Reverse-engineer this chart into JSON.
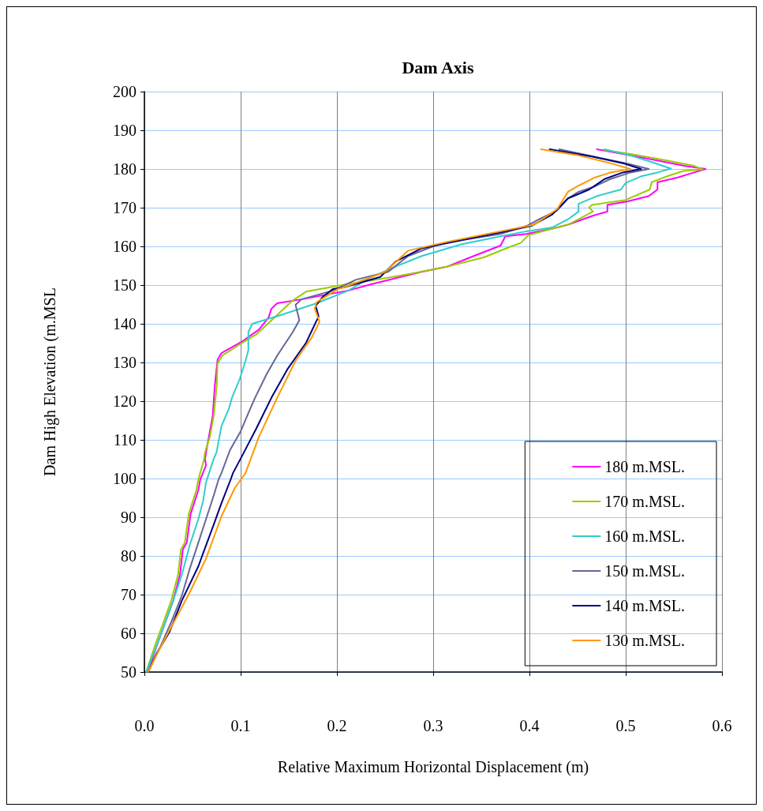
{
  "chart_data": {
    "type": "line",
    "title": "Dam Axis",
    "xlabel": "Relative Maximum Horizontal Displacement (m)",
    "ylabel": "Dam High Elevation (m.MSL",
    "xlim": [
      0,
      0.6
    ],
    "ylim": [
      50,
      200
    ],
    "xticks": [
      {
        "value": 0,
        "label": "0.0"
      },
      {
        "value": 0.1,
        "label": "0.1"
      },
      {
        "value": 0.2,
        "label": "0.2"
      },
      {
        "value": 0.3,
        "label": "0.3"
      },
      {
        "value": 0.4,
        "label": "0.4"
      },
      {
        "value": 0.5,
        "label": "0.5"
      },
      {
        "value": 0.6,
        "label": "0.6"
      }
    ],
    "yticks": [
      50,
      60,
      70,
      80,
      90,
      100,
      110,
      120,
      130,
      140,
      150,
      160,
      170,
      180,
      190,
      200
    ],
    "grid": true,
    "legend": "bottom right",
    "marker": "none",
    "line_style": "solid",
    "series": [
      {
        "name": "180 m.MSL.",
        "color": "#ff00ff",
        "x": [
          0.004,
          0.014,
          0.021,
          0.03,
          0.037,
          0.04,
          0.044,
          0.048,
          0.056,
          0.058,
          0.064,
          0.063,
          0.065,
          0.068,
          0.071,
          0.073,
          0.075,
          0.076,
          0.08,
          0.102,
          0.119,
          0.129,
          0.132,
          0.138,
          0.163,
          0.212,
          0.234,
          0.261,
          0.288,
          0.315,
          0.342,
          0.37,
          0.375,
          0.397,
          0.424,
          0.44,
          0.467,
          0.481,
          0.481,
          0.503,
          0.524,
          0.533,
          0.533,
          0.554,
          0.571,
          0.583,
          0.561,
          0.533,
          0.505,
          0.47
        ],
        "values": [
          50.1,
          57.6,
          62.3,
          68.5,
          75.2,
          81.7,
          83.4,
          90.8,
          97,
          99.7,
          103.4,
          105,
          108.1,
          112.2,
          116.2,
          123.6,
          128.4,
          130.7,
          132.4,
          135.5,
          138.5,
          141.6,
          143.9,
          145.3,
          146.3,
          148.6,
          150.1,
          151.8,
          153.4,
          154.8,
          157.5,
          160.2,
          162.6,
          163.2,
          164.6,
          165.6,
          168,
          169,
          170.7,
          171.7,
          173,
          174.7,
          176.6,
          177.8,
          179.1,
          180,
          180.8,
          182.2,
          183.5,
          185.1
        ]
      },
      {
        "name": "170 m.MSL.",
        "color": "#99cc00",
        "x": [
          0.002,
          0.012,
          0.019,
          0.028,
          0.035,
          0.038,
          0.042,
          0.046,
          0.054,
          0.056,
          0.062,
          0.063,
          0.068,
          0.072,
          0.075,
          0.076,
          0.081,
          0.1,
          0.116,
          0.135,
          0.154,
          0.168,
          0.212,
          0.234,
          0.274,
          0.315,
          0.353,
          0.38,
          0.391,
          0.399,
          0.424,
          0.44,
          0.451,
          0.466,
          0.462,
          0.465,
          0.5,
          0.525,
          0.527,
          0.543,
          0.56,
          0.58,
          0.571,
          0.543,
          0.505,
          0.478
        ],
        "values": [
          50.1,
          57.6,
          62.3,
          68.5,
          75.2,
          81.7,
          83.4,
          90.8,
          97,
          99.7,
          105,
          106.8,
          110.8,
          116.2,
          123.6,
          129.7,
          131.8,
          134.8,
          137.2,
          141.6,
          146,
          148.3,
          150.3,
          151.1,
          152.8,
          154.8,
          157.2,
          159.9,
          160.9,
          162.9,
          164.6,
          165.6,
          167,
          169,
          170,
          170.7,
          172,
          174.7,
          176.6,
          178.1,
          179.5,
          179.9,
          180.8,
          182.2,
          183.9,
          184.9
        ]
      },
      {
        "name": "160 m.MSL.",
        "color": "#33cccc",
        "x": [
          0.002,
          0.011,
          0.02,
          0.03,
          0.039,
          0.047,
          0.056,
          0.061,
          0.064,
          0.072,
          0.075,
          0.08,
          0.088,
          0.091,
          0.099,
          0.105,
          0.108,
          0.108,
          0.112,
          0.141,
          0.179,
          0.212,
          0.234,
          0.261,
          0.288,
          0.329,
          0.37,
          0.397,
          0.424,
          0.44,
          0.451,
          0.451,
          0.47,
          0.495,
          0.5,
          0.516,
          0.533,
          0.547,
          0.527,
          0.505,
          0.478
        ],
        "values": [
          50.1,
          55.6,
          61.7,
          68.5,
          75.2,
          82.7,
          89.5,
          94.2,
          99,
          105.1,
          106.8,
          113.5,
          118.2,
          120.9,
          125.7,
          130.4,
          133.1,
          137.8,
          140,
          142.2,
          145.3,
          148.6,
          151.8,
          154.8,
          157.5,
          160.5,
          162.6,
          163.9,
          164.9,
          167,
          169,
          171,
          173,
          174.7,
          176.4,
          178.1,
          179.1,
          180.1,
          181.8,
          183.5,
          185.1
        ]
      },
      {
        "name": "150 m.MSL.",
        "color": "#666699",
        "x": [
          0.004,
          0.016,
          0.028,
          0.039,
          0.047,
          0.056,
          0.064,
          0.072,
          0.077,
          0.08,
          0.089,
          0.1,
          0.108,
          0.115,
          0.127,
          0.138,
          0.154,
          0.161,
          0.157,
          0.163,
          0.196,
          0.22,
          0.253,
          0.274,
          0.302,
          0.329,
          0.37,
          0.397,
          0.41,
          0.429,
          0.44,
          0.451,
          0.467,
          0.484,
          0.505,
          0.524,
          0.5,
          0.467,
          0.431
        ],
        "values": [
          50.1,
          56.2,
          63,
          69.8,
          76.6,
          83.4,
          89.5,
          95.6,
          99.7,
          101.4,
          107.4,
          112.2,
          116.9,
          120.9,
          127,
          131.8,
          137.8,
          140.9,
          144.9,
          146.3,
          148.6,
          151.4,
          153.4,
          157.5,
          160.2,
          161.6,
          163.2,
          165.3,
          167,
          169.3,
          172.4,
          174.1,
          175.4,
          177.4,
          179.1,
          180,
          181.5,
          183.2,
          185.1
        ]
      },
      {
        "name": "140 m.MSL.",
        "color": "#000080",
        "x": [
          0.004,
          0.013,
          0.026,
          0.039,
          0.056,
          0.072,
          0.08,
          0.09,
          0.092,
          0.102,
          0.116,
          0.132,
          0.149,
          0.168,
          0.181,
          0.178,
          0.185,
          0.196,
          0.207,
          0.245,
          0.261,
          0.288,
          0.315,
          0.37,
          0.402,
          0.424,
          0.44,
          0.462,
          0.478,
          0.497,
          0.516,
          0.497,
          0.465,
          0.421
        ],
        "values": [
          50.1,
          54.9,
          60.3,
          68.5,
          77.3,
          88.1,
          93.6,
          100,
          101.4,
          106.1,
          112.8,
          120.9,
          128.4,
          135.1,
          141.9,
          144.6,
          146.9,
          149,
          149.4,
          152.1,
          156.1,
          159.5,
          160.9,
          163.6,
          165.3,
          168.3,
          172.4,
          174.7,
          177.4,
          179.1,
          180,
          181.5,
          183.2,
          185.1
        ]
      },
      {
        "name": "130 m.MSL.",
        "color": "#ff9900",
        "x": [
          0.004,
          0.015,
          0.028,
          0.047,
          0.064,
          0.08,
          0.094,
          0.105,
          0.119,
          0.138,
          0.157,
          0.174,
          0.182,
          0.177,
          0.179,
          0.201,
          0.207,
          0.25,
          0.274,
          0.315,
          0.37,
          0.405,
          0.429,
          0.44,
          0.451,
          0.467,
          0.484,
          0.505,
          0.484,
          0.451,
          0.412
        ],
        "values": [
          50.1,
          55.6,
          61.7,
          70.5,
          79.3,
          90.2,
          97.6,
          101.4,
          110.8,
          120.9,
          130.4,
          136.5,
          140.5,
          143.9,
          145.6,
          149,
          149.4,
          153.4,
          158.9,
          161.2,
          163.9,
          165.6,
          169.7,
          174.1,
          175.7,
          177.7,
          179.1,
          180,
          181.5,
          183.5,
          185.1
        ]
      }
    ]
  }
}
